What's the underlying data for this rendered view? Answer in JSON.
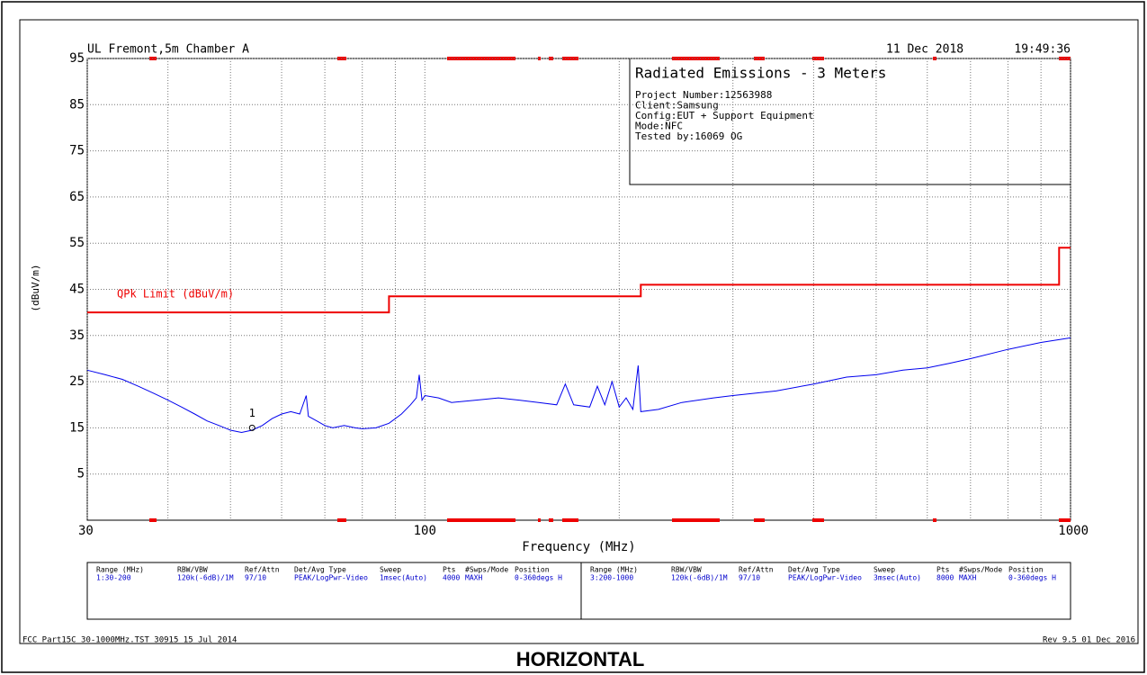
{
  "header": {
    "site": "UL Fremont,5m Chamber A",
    "date": "11 Dec 2018",
    "time": "19:49:36"
  },
  "info_box": {
    "title": "Radiated Emissions - 3 Meters",
    "lines": [
      "Project Number:12563988",
      "Client:Samsung",
      "Config:EUT + Support Equipment",
      "Mode:NFC",
      "Tested by:16069 OG"
    ]
  },
  "chart_data": {
    "type": "line",
    "xlabel": "Frequency (MHz)",
    "ylabel": "(dBuV/m)",
    "log_x": true,
    "grid": true,
    "xlim": [
      30,
      1000
    ],
    "xticks": [
      30,
      100,
      1000
    ],
    "x_grid": [
      40,
      50,
      60,
      70,
      80,
      90,
      200,
      300,
      400,
      500,
      600,
      700,
      800,
      900
    ],
    "ylim": [
      -5,
      95
    ],
    "yticks": [
      5,
      15,
      25,
      35,
      45,
      55,
      65,
      75,
      85,
      95
    ],
    "series": [
      {
        "color": "#0000ee",
        "x": [
          30,
          32,
          34,
          36,
          38,
          40,
          42,
          44,
          46,
          48,
          50,
          52,
          54,
          56,
          58,
          60,
          62,
          64,
          65.5,
          66,
          68,
          70,
          72,
          75,
          78,
          80,
          84,
          88,
          92,
          95,
          97,
          98,
          99,
          100,
          105,
          110,
          120,
          130,
          140,
          150,
          160,
          165,
          170,
          180,
          185,
          190,
          195,
          200,
          205,
          210,
          214,
          216,
          230,
          250,
          280,
          300,
          350,
          400,
          450,
          500,
          550,
          600,
          650,
          700,
          800,
          900,
          1000
        ],
        "values": [
          27.5,
          26.5,
          25.5,
          24,
          22.5,
          21,
          19.5,
          18,
          16.5,
          15.5,
          14.5,
          14,
          14.5,
          15.5,
          17,
          18,
          18.5,
          18,
          22,
          17.5,
          16.5,
          15.5,
          15,
          15.5,
          15,
          14.8,
          15,
          16,
          18,
          20,
          21.5,
          26.5,
          21,
          22,
          21.5,
          20.5,
          21,
          21.5,
          21,
          20.5,
          20,
          24.5,
          20,
          19.5,
          24,
          20,
          25,
          19.5,
          21.5,
          19,
          28.5,
          18.5,
          19,
          20.5,
          21.5,
          22,
          23,
          24.5,
          26,
          26.5,
          27.5,
          28,
          29,
          30,
          32,
          33.5,
          34.5
        ]
      },
      {
        "name": "QPk Limit (dBuV/m)",
        "color": "#ee0000",
        "x": [
          30,
          88,
          88,
          216,
          216,
          960,
          960,
          1000
        ],
        "values": [
          40,
          40,
          43.5,
          43.5,
          46,
          46,
          54,
          54
        ]
      }
    ],
    "markers": [
      {
        "label": "1",
        "x": 54,
        "y": 15
      }
    ]
  },
  "settings_table": {
    "columns": [
      "Range (MHz)",
      "RBW/VBW",
      "Ref/Attn",
      "Det/Avg Type",
      "Sweep",
      "Pts",
      "#Swps/Mode",
      "Position"
    ],
    "rows": [
      [
        "1:30-200",
        "120k(-6dB)/1M",
        "97/10",
        "PEAK/LogPwr-Video",
        "1msec(Auto)",
        "4000",
        "MAXH",
        "0-360degs H"
      ],
      [
        "3:200-1000",
        "120k(-6dB)/1M",
        "97/10",
        "PEAK/LogPwr-Video",
        "3msec(Auto)",
        "8000",
        "MAXH",
        "0-360degs H"
      ]
    ]
  },
  "footer": {
    "file": "FCC Part15C 30-1000MHz.TST 30915 15 Jul 2014",
    "rev": "Rev 9.5 01 Dec 2016",
    "caption": "HORIZONTAL"
  }
}
